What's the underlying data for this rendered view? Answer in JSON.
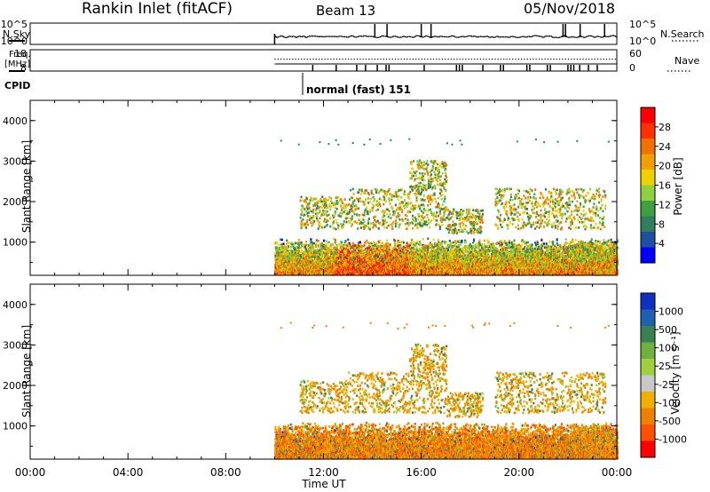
{
  "header": {
    "station": "Rankin Inlet (fitACF)",
    "beam": "Beam 13",
    "date": "05/Nov/2018"
  },
  "noise_panel": {
    "left_label": "N.Sky",
    "right_label": "N.Search",
    "left_ticks": [
      "10^5",
      "10^0"
    ],
    "right_ticks": [
      "10^5",
      "10^0"
    ]
  },
  "freq_panel": {
    "left_label_1": "Freq.",
    "left_label_2": "[MHz]",
    "right_label": "Nave",
    "left_ticks": [
      "18",
      "8"
    ],
    "right_ticks": [
      "60",
      "0"
    ]
  },
  "cpid_panel": {
    "label": "CPID",
    "mode_text": "normal (fast) 151"
  },
  "colors": {
    "power_scale": [
      "#0000ff",
      "#1f4f9f",
      "#2f7f5f",
      "#3fa040",
      "#8fd040",
      "#f0d000",
      "#f0a000",
      "#f07000",
      "#ff3000",
      "#ff0000"
    ],
    "velocity_scale": [
      "#1030c0",
      "#2060b0",
      "#3a8050",
      "#70b040",
      "#a0d040",
      "#c8c8c8",
      "#f0b000",
      "#f08000",
      "#ff5000",
      "#ff0000"
    ]
  },
  "chart_data": [
    {
      "type": "heatmap",
      "title": "Power",
      "ylabel": "Slant Range [km]",
      "yticks": [
        "1000",
        "2000",
        "3000",
        "4000"
      ],
      "ylim": [
        180,
        4500
      ],
      "xlim_hours": [
        0,
        24
      ],
      "data_start_hour": 10,
      "colorbar_label": "Power [dB]",
      "colorbar_ticks": [
        "4",
        "8",
        "12",
        "16",
        "20",
        "24",
        "28"
      ],
      "colorbar_range": [
        0,
        30
      ]
    },
    {
      "type": "heatmap",
      "title": "Velocity",
      "ylabel": "Slant Range [km]",
      "yticks": [
        "1000",
        "2000",
        "3000",
        "4000"
      ],
      "ylim": [
        180,
        4500
      ],
      "xlim_hours": [
        0,
        24
      ],
      "data_start_hour": 10,
      "colorbar_label": "Velocity [m s⁻¹]",
      "colorbar_ticks": [
        "1000",
        "500",
        "100",
        "25",
        "-25",
        "-100",
        "-500",
        "-1000"
      ]
    }
  ],
  "xaxis": {
    "ticks": [
      "00:00",
      "04:00",
      "08:00",
      "12:00",
      "16:00",
      "20:00",
      "00:00"
    ],
    "label": "Time UT"
  }
}
